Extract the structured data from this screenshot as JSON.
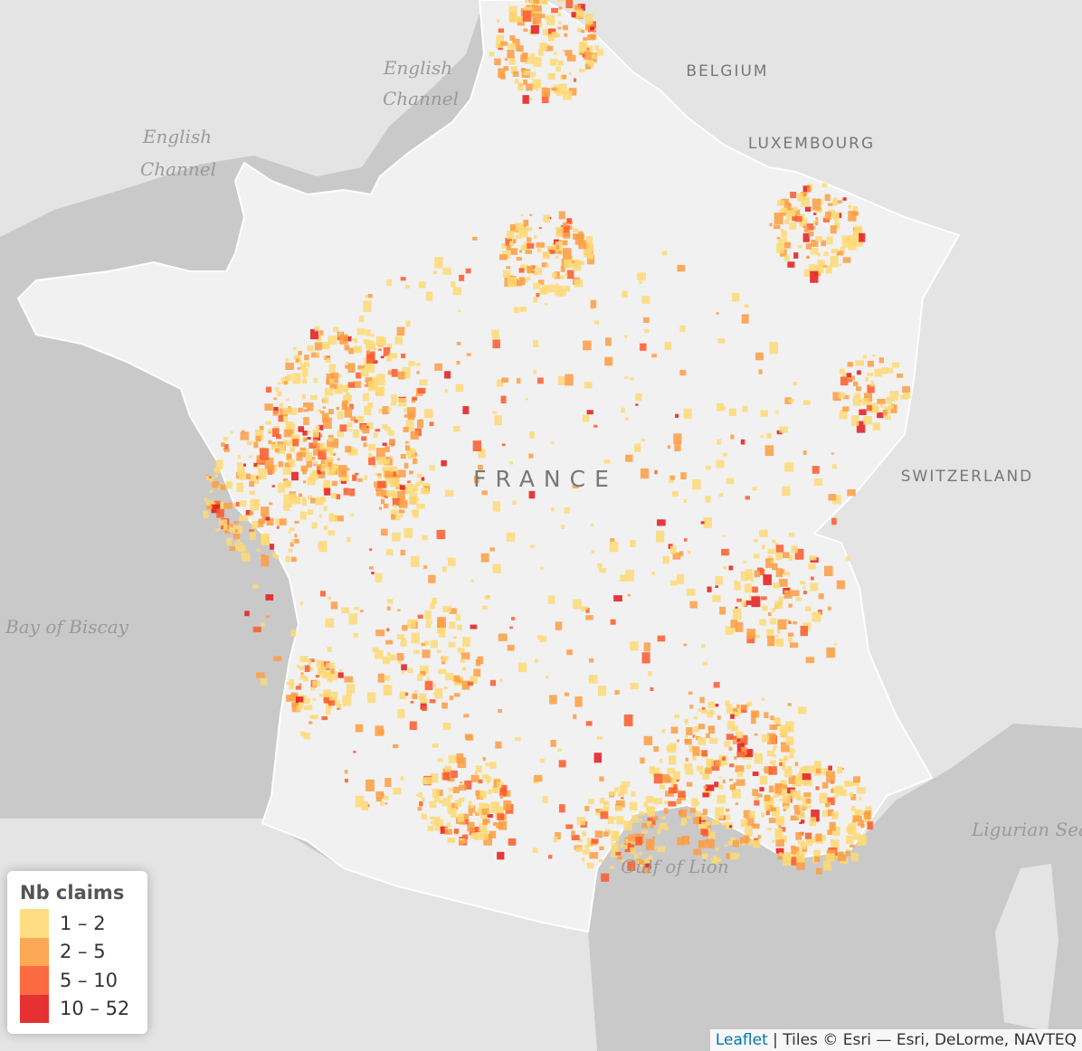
{
  "map": {
    "labels": {
      "channel_1": "English",
      "channel_1b": "Channel",
      "channel_2": "English",
      "channel_2b": "Channel",
      "belgium": "BELGIUM",
      "luxembourg": "LUXEMBOURG",
      "france": "FRANCE",
      "switzerland": "SWITZERLAND",
      "biscay": "Bay of Biscay",
      "lion": "Gulf of Lion",
      "ligurian": "Ligurian Sea"
    }
  },
  "legend": {
    "title": "Nb claims",
    "items": [
      {
        "label": "1 – 2",
        "color": "#fed976"
      },
      {
        "label": "2 – 5",
        "color": "#fd9e43"
      },
      {
        "label": "5 – 10",
        "color": "#fc5a2c"
      },
      {
        "label": "10 – 52",
        "color": "#e31a1c"
      }
    ]
  },
  "attribution": {
    "link": "Leaflet",
    "text": " | Tiles © Esri — Esri, DeLorme, NAVTEQ"
  }
}
